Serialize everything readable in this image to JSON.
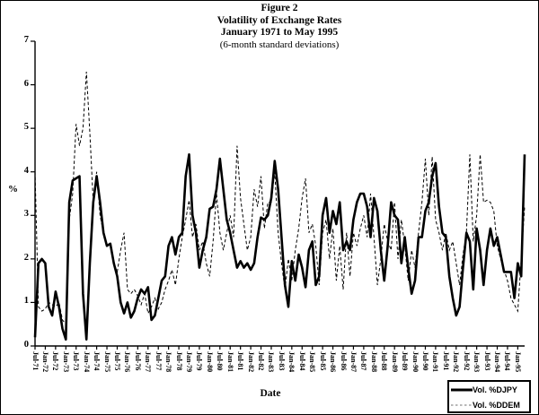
{
  "figure": {
    "label": "Figure 2",
    "title": "Volatility of Exchange Rates",
    "subtitle": "January 1971 to May 1995",
    "note": "(6-month standard deviations)"
  },
  "axes": {
    "y_label": "%",
    "x_label": "Date"
  },
  "legend": {
    "items": [
      {
        "label": "Vol. %DJPY",
        "line_style": "solid-thick"
      },
      {
        "label": "Vol. %DDEM",
        "line_style": "dashed-thin"
      }
    ]
  },
  "colors": {
    "ink": "#000000",
    "paper": "#ffffff"
  },
  "chart_data": {
    "type": "line",
    "title": "Volatility of Exchange Rates",
    "subtitle": "January 1971 to May 1995 (6-month standard deviations)",
    "xlabel": "Date",
    "ylabel": "%",
    "ylim": [
      0,
      7
    ],
    "y_ticks": [
      0,
      1,
      2,
      3,
      4,
      5,
      6,
      7
    ],
    "grid": false,
    "legend_position": "bottom-right",
    "x_start": "Jul-71",
    "x_end": "May-95",
    "sample_interval_months": 2,
    "total_months": 286,
    "x_tick_interval_months": 6,
    "x_tick_labels": [
      "Jul-71",
      "Jan-72",
      "Jul-72",
      "Jan-73",
      "Jul-73",
      "Jan-74",
      "Jul-74",
      "Jan-75",
      "Jul-75",
      "Jan-76",
      "Jul-76",
      "Jan-77",
      "Jul-77",
      "Jan-78",
      "Jul-78",
      "Jan-79",
      "Jul-79",
      "Jan-80",
      "Jul-80",
      "Jan-81",
      "Jul-81",
      "Jan-82",
      "Jul-82",
      "Jan-83",
      "Jul-83",
      "Jan-84",
      "Jul-84",
      "Jan-85",
      "Jul-85",
      "Jan-86",
      "Jul-86",
      "Jan-87",
      "Jul-87",
      "Jan-88",
      "Jul-88",
      "Jan-89",
      "Jul-89",
      "Jan-90",
      "Jul-90",
      "Jan-91",
      "Jul-91",
      "Jan-92",
      "Jul-92",
      "Jan-93",
      "Jul-93",
      "Jan-94",
      "Jul-94",
      "Jan-95"
    ],
    "series": [
      {
        "name": "Vol. %DJPY",
        "style": "solid",
        "stroke_width": 2.6,
        "values": [
          0.2,
          1.9,
          2.0,
          1.9,
          0.9,
          0.7,
          1.25,
          0.9,
          0.4,
          0.15,
          3.3,
          3.8,
          3.85,
          3.9,
          1.2,
          0.15,
          1.9,
          3.3,
          3.9,
          3.3,
          2.6,
          2.3,
          2.35,
          1.9,
          1.6,
          1.0,
          0.75,
          1.0,
          0.65,
          0.8,
          1.1,
          1.3,
          1.2,
          1.35,
          0.6,
          0.7,
          1.1,
          1.5,
          1.6,
          2.3,
          2.5,
          2.1,
          2.5,
          2.6,
          3.9,
          4.4,
          3.0,
          2.6,
          1.8,
          2.2,
          2.5,
          3.15,
          3.2,
          3.6,
          4.3,
          3.6,
          2.9,
          2.6,
          2.2,
          1.8,
          1.95,
          1.8,
          1.9,
          1.75,
          1.9,
          2.5,
          2.95,
          2.9,
          3.0,
          3.4,
          4.25,
          3.6,
          2.5,
          1.4,
          0.9,
          1.95,
          1.5,
          2.1,
          1.8,
          1.35,
          2.2,
          2.4,
          1.4,
          1.6,
          3.0,
          3.4,
          2.6,
          3.1,
          2.8,
          3.3,
          2.2,
          2.4,
          2.2,
          2.9,
          3.3,
          3.5,
          3.5,
          3.2,
          2.5,
          3.4,
          3.1,
          2.2,
          1.5,
          2.3,
          3.3,
          3.0,
          2.9,
          1.9,
          2.5,
          1.8,
          1.2,
          1.5,
          2.5,
          2.5,
          3.1,
          3.3,
          3.9,
          4.2,
          3.2,
          2.6,
          2.5,
          1.6,
          1.1,
          0.7,
          0.9,
          1.8,
          2.6,
          2.4,
          1.3,
          2.7,
          2.2,
          1.4,
          2.2,
          2.7,
          2.3,
          2.5,
          2.1,
          1.7,
          1.7,
          1.7,
          1.1,
          1.9,
          1.6,
          4.4
        ]
      },
      {
        "name": "Vol. %DDEM",
        "style": "dashed",
        "stroke_width": 1,
        "values": [
          4.0,
          0.9,
          0.8,
          0.85,
          1.0,
          0.95,
          0.9,
          1.0,
          0.6,
          0.5,
          2.9,
          3.5,
          5.1,
          4.6,
          5.0,
          6.3,
          4.9,
          3.3,
          4.0,
          3.0,
          2.6,
          2.3,
          2.3,
          1.9,
          1.7,
          2.2,
          2.6,
          1.3,
          1.2,
          1.3,
          1.15,
          0.95,
          1.2,
          0.75,
          0.9,
          1.1,
          0.85,
          1.0,
          1.3,
          1.5,
          1.75,
          1.4,
          2.0,
          2.5,
          2.9,
          3.35,
          2.5,
          2.8,
          2.2,
          2.4,
          1.9,
          1.6,
          2.4,
          3.5,
          2.6,
          2.2,
          2.6,
          3.0,
          2.5,
          4.6,
          3.4,
          2.8,
          2.2,
          2.5,
          3.6,
          3.2,
          3.9,
          2.7,
          3.3,
          3.3,
          4.0,
          2.6,
          1.9,
          1.3,
          2.0,
          1.5,
          2.2,
          2.7,
          3.4,
          3.85,
          2.6,
          2.8,
          2.3,
          1.4,
          2.6,
          2.9,
          2.0,
          2.7,
          1.5,
          2.3,
          1.3,
          2.6,
          1.6,
          2.6,
          2.3,
          2.7,
          3.0,
          2.5,
          3.5,
          2.5,
          1.4,
          2.0,
          2.8,
          2.4,
          2.2,
          3.3,
          2.0,
          2.9,
          2.3,
          1.5,
          2.2,
          1.8,
          2.6,
          3.3,
          4.3,
          3.0,
          4.35,
          2.9,
          2.6,
          2.2,
          2.6,
          2.2,
          2.4,
          1.9,
          1.4,
          2.1,
          2.6,
          4.4,
          2.4,
          3.0,
          4.4,
          3.3,
          3.35,
          3.3,
          3.1,
          2.3,
          2.0,
          1.75,
          1.5,
          1.1,
          0.95,
          0.8,
          2.0,
          3.2
        ]
      }
    ]
  }
}
